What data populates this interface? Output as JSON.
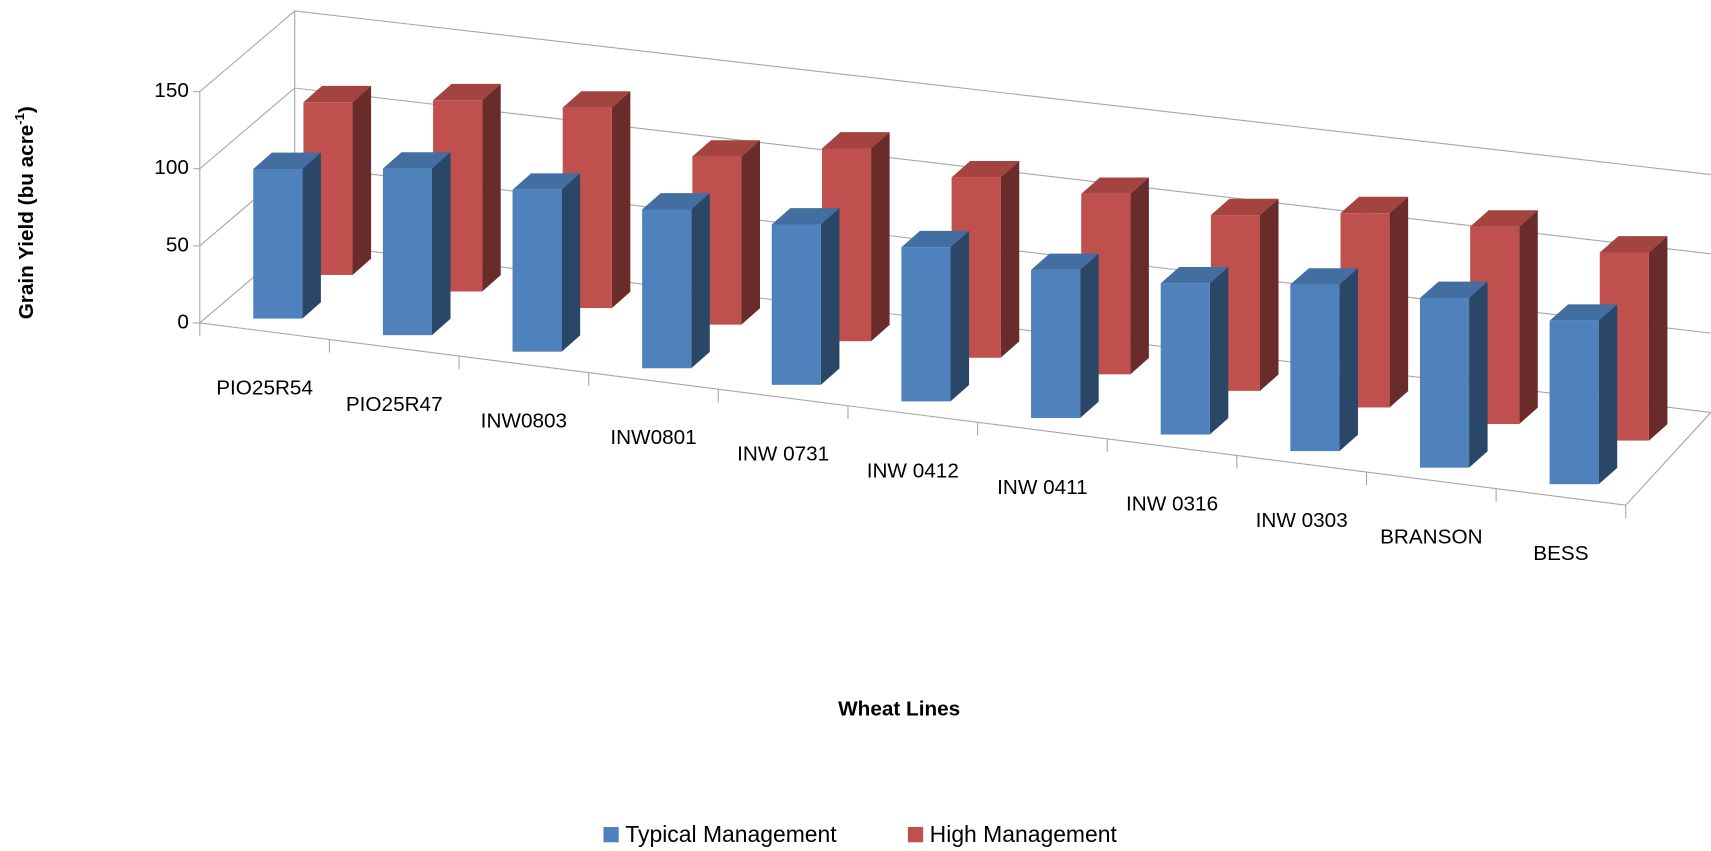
{
  "chart_data": {
    "type": "bar3d",
    "categories": [
      "PIO25R54",
      "PIO25R47",
      "INW0803",
      "INW0801",
      "INW 0731",
      "INW 0412",
      "INW 0411",
      "INW 0316",
      "INW 0303",
      "BRANSON",
      "BESS"
    ],
    "series": [
      {
        "name": "Typical Management",
        "color": "#4f81bd",
        "values": [
          97,
          108,
          105,
          103,
          104,
          100,
          96,
          98,
          108,
          110,
          106
        ]
      },
      {
        "name": "High Management",
        "color": "#c0504d",
        "values": [
          112,
          124,
          130,
          109,
          125,
          117,
          117,
          114,
          126,
          128,
          122
        ]
      }
    ],
    "ylim": [
      0,
      150
    ],
    "yticks": [
      0,
      50,
      100,
      150
    ],
    "ylabel": "Grain Yield (bu acre",
    "ylabel_sup": "-1",
    "ylabel_end": ")",
    "xlabel": "Wheat Lines",
    "grid": true,
    "legend": "bottom"
  }
}
